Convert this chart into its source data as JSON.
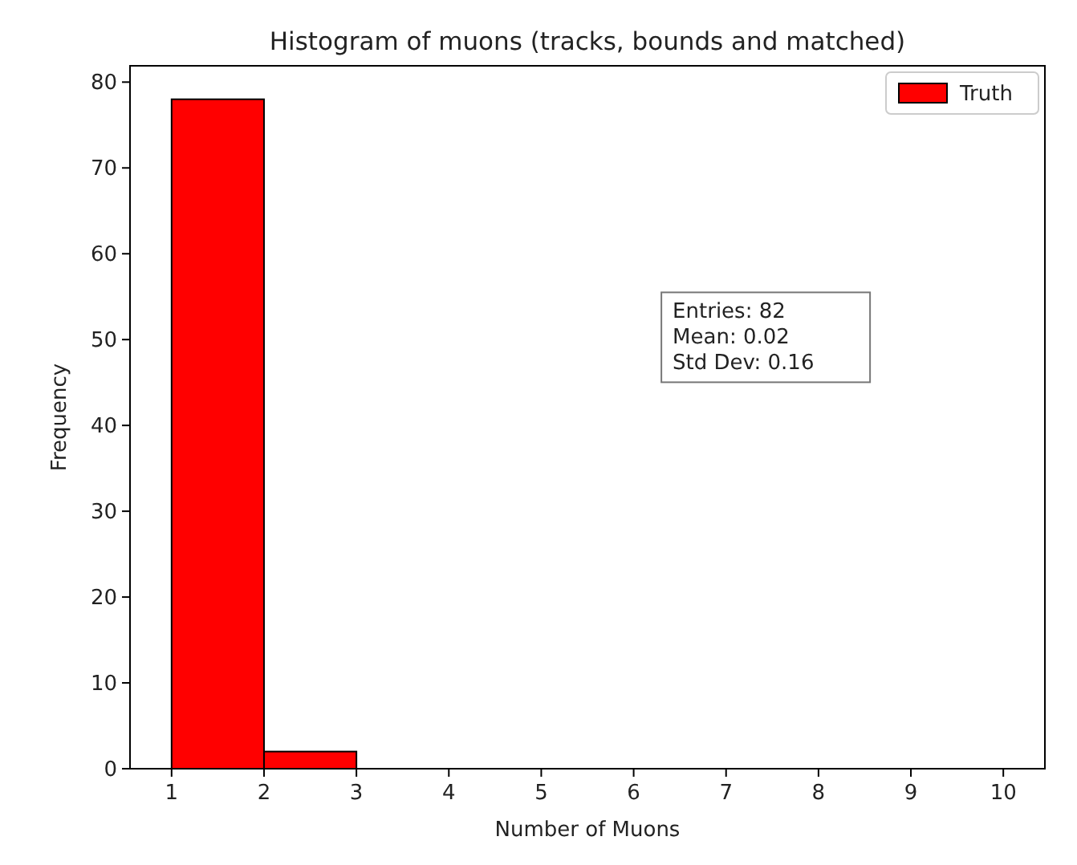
{
  "chart_data": {
    "type": "histogram",
    "title": "Histogram of muons (tracks, bounds and matched)",
    "xlabel": "Number of Muons",
    "ylabel": "Frequency",
    "bins": [
      1,
      2,
      3,
      4,
      5,
      6,
      7,
      8,
      9,
      10
    ],
    "series": [
      {
        "name": "Truth",
        "color": "#ff0000",
        "values": [
          78,
          2,
          0,
          0,
          0,
          0,
          0,
          0,
          0
        ]
      }
    ],
    "xlim": [
      0.55,
      10.45
    ],
    "xticks": [
      1,
      2,
      3,
      4,
      5,
      6,
      7,
      8,
      9,
      10
    ],
    "ylim": [
      0,
      81.9
    ],
    "yticks": [
      0,
      10,
      20,
      30,
      40,
      50,
      60,
      70,
      80
    ],
    "legend": "top right",
    "grid": false,
    "annotations": [
      "Entries: 82",
      "Mean: 0.02",
      "Std Dev: 0.16"
    ]
  }
}
